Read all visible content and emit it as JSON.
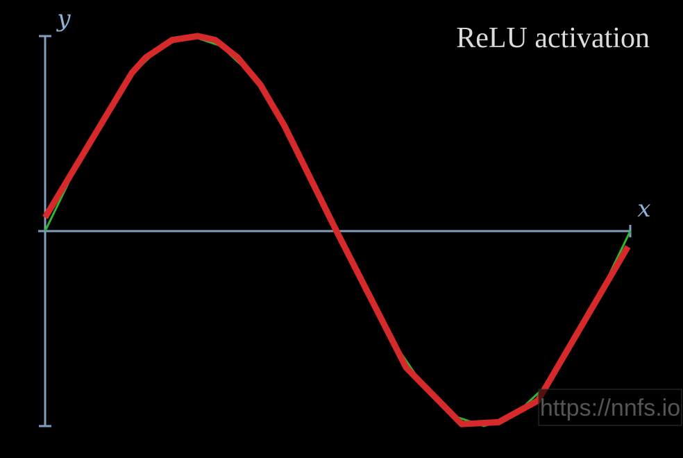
{
  "chart_data": {
    "type": "line",
    "title": "ReLU activation",
    "x_label": "x",
    "y_label": "y",
    "watermark": "https://nnfs.io",
    "xlim": [
      0,
      1
    ],
    "ylim": [
      -1,
      1
    ],
    "series": [
      {
        "color": "#2fb52f",
        "x": [
          0,
          0.05,
          0.1,
          0.15,
          0.2,
          0.25,
          0.3,
          0.35,
          0.4,
          0.45,
          0.5,
          0.55,
          0.6,
          0.65,
          0.7,
          0.75,
          0.8,
          0.85,
          0.9,
          0.95,
          1
        ],
        "values": [
          0,
          0.31,
          0.59,
          0.81,
          0.95,
          1,
          0.95,
          0.81,
          0.59,
          0.31,
          0,
          -0.31,
          -0.59,
          -0.81,
          -0.95,
          -1,
          -0.95,
          -0.81,
          -0.59,
          -0.31,
          0
        ]
      },
      {
        "color": "#d62a2a",
        "x": [
          0,
          0.148,
          0.172,
          0.217,
          0.261,
          0.291,
          0.329,
          0.368,
          0.409,
          0.498,
          0.617,
          0.712,
          0.775,
          0.842,
          0.996
        ],
        "values": [
          0.07,
          0.81,
          0.89,
          0.98,
          1.0,
          0.98,
          0.89,
          0.75,
          0.54,
          0,
          -0.7,
          -0.99,
          -0.98,
          -0.87,
          -0.08
        ]
      }
    ]
  }
}
